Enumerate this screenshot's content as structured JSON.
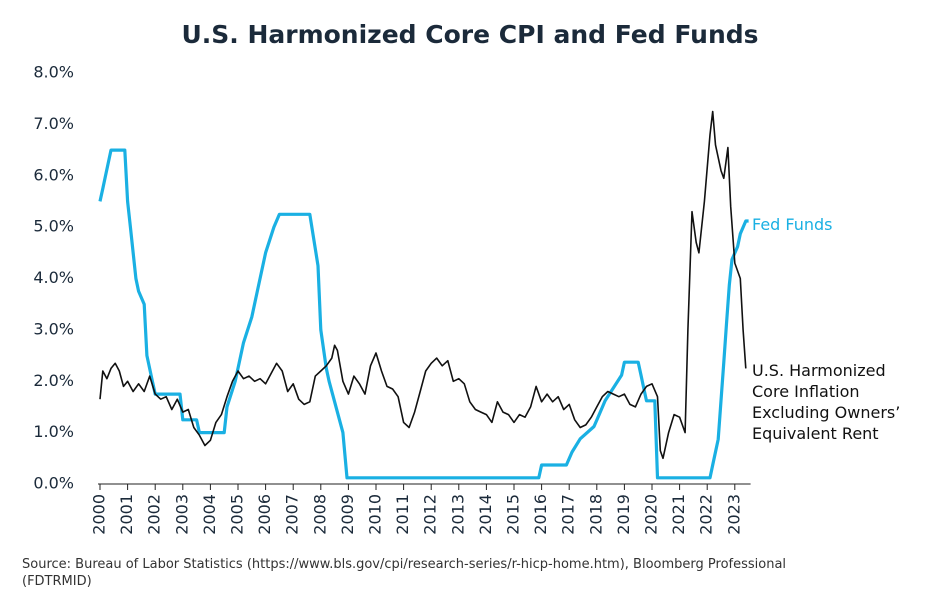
{
  "chart_data": {
    "type": "line",
    "title": "U.S. Harmonized Core CPI and Fed Funds",
    "source": "Source: Bureau of Labor Statistics (https://www.bls.gov/cpi/research-series/r-hicp-home.htm), Bloomberg Professional (FDTRMID)",
    "xlim": [
      2000,
      2023.5
    ],
    "xticks": [
      2000,
      2001,
      2002,
      2003,
      2004,
      2005,
      2006,
      2007,
      2008,
      2009,
      2010,
      2011,
      2012,
      2013,
      2014,
      2015,
      2016,
      2017,
      2018,
      2019,
      2020,
      2021,
      2022,
      2023
    ],
    "ylim": [
      0,
      8
    ],
    "yticks": [
      {
        "value": 0,
        "label": "0.0%"
      },
      {
        "value": 1,
        "label": "1.0%"
      },
      {
        "value": 2,
        "label": "2.0%"
      },
      {
        "value": 3,
        "label": "3.0%"
      },
      {
        "value": 4,
        "label": "4.0%"
      },
      {
        "value": 5,
        "label": "5.0%"
      },
      {
        "value": 6,
        "label": "6.0%"
      },
      {
        "value": 7,
        "label": "7.0%"
      },
      {
        "value": 8,
        "label": "8.0%"
      }
    ],
    "series": [
      {
        "name": "Fed Funds",
        "color": "#1ab0e3",
        "width": 3.2,
        "x": [
          2000.0,
          2000.1,
          2000.2,
          2000.4,
          2000.9,
          2001.0,
          2001.1,
          2001.3,
          2001.4,
          2001.6,
          2001.7,
          2001.9,
          2002.0,
          2002.9,
          2003.0,
          2003.5,
          2003.6,
          2004.5,
          2004.6,
          2004.9,
          2005.2,
          2005.5,
          2005.7,
          2006.0,
          2006.3,
          2006.5,
          2007.6,
          2007.75,
          2007.9,
          2008.0,
          2008.2,
          2008.3,
          2008.8,
          2008.95,
          2015.9,
          2016.0,
          2016.9,
          2017.1,
          2017.4,
          2017.9,
          2018.1,
          2018.3,
          2018.6,
          2018.9,
          2019.0,
          2019.5,
          2019.6,
          2019.7,
          2019.8,
          2020.1,
          2020.2,
          2022.1,
          2022.2,
          2022.4,
          2022.5,
          2022.6,
          2022.7,
          2022.8,
          2022.9,
          2023.1,
          2023.2,
          2023.4,
          2023.5
        ],
        "values": [
          5.5,
          5.75,
          6.0,
          6.5,
          6.5,
          5.5,
          5.0,
          4.0,
          3.75,
          3.5,
          2.5,
          2.0,
          1.75,
          1.75,
          1.25,
          1.25,
          1.0,
          1.0,
          1.5,
          2.0,
          2.75,
          3.25,
          3.75,
          4.5,
          5.0,
          5.25,
          5.25,
          4.75,
          4.25,
          3.0,
          2.25,
          2.0,
          1.0,
          0.12,
          0.12,
          0.37,
          0.37,
          0.62,
          0.88,
          1.12,
          1.37,
          1.62,
          1.87,
          2.12,
          2.37,
          2.37,
          2.12,
          1.87,
          1.62,
          1.62,
          0.12,
          0.12,
          0.37,
          0.87,
          1.62,
          2.37,
          3.12,
          3.87,
          4.37,
          4.62,
          4.87,
          5.12,
          5.12
        ]
      },
      {
        "name": "U.S. Harmonized Core Inflation Excluding Owners’ Equivalent Rent",
        "color": "#111111",
        "width": 1.6,
        "x": [
          2000.0,
          2000.1,
          2000.25,
          2000.4,
          2000.55,
          2000.7,
          2000.85,
          2001.0,
          2001.2,
          2001.4,
          2001.6,
          2001.8,
          2002.0,
          2002.2,
          2002.4,
          2002.6,
          2002.8,
          2003.0,
          2003.2,
          2003.4,
          2003.6,
          2003.8,
          2004.0,
          2004.2,
          2004.4,
          2004.6,
          2004.8,
          2005.0,
          2005.2,
          2005.4,
          2005.6,
          2005.8,
          2006.0,
          2006.2,
          2006.4,
          2006.6,
          2006.8,
          2007.0,
          2007.2,
          2007.4,
          2007.6,
          2007.8,
          2008.0,
          2008.2,
          2008.4,
          2008.5,
          2008.6,
          2008.8,
          2009.0,
          2009.2,
          2009.4,
          2009.6,
          2009.8,
          2010.0,
          2010.2,
          2010.4,
          2010.6,
          2010.8,
          2011.0,
          2011.2,
          2011.4,
          2011.6,
          2011.8,
          2012.0,
          2012.2,
          2012.4,
          2012.6,
          2012.8,
          2013.0,
          2013.2,
          2013.4,
          2013.6,
          2013.8,
          2014.0,
          2014.2,
          2014.4,
          2014.6,
          2014.8,
          2015.0,
          2015.2,
          2015.4,
          2015.6,
          2015.8,
          2016.0,
          2016.2,
          2016.4,
          2016.6,
          2016.8,
          2017.0,
          2017.2,
          2017.4,
          2017.6,
          2017.8,
          2018.0,
          2018.2,
          2018.4,
          2018.6,
          2018.8,
          2019.0,
          2019.2,
          2019.4,
          2019.6,
          2019.8,
          2020.0,
          2020.2,
          2020.3,
          2020.4,
          2020.6,
          2020.8,
          2021.0,
          2021.2,
          2021.3,
          2021.45,
          2021.6,
          2021.7,
          2021.9,
          2022.1,
          2022.2,
          2022.3,
          2022.5,
          2022.6,
          2022.75,
          2022.85,
          2023.0,
          2023.2,
          2023.3,
          2023.4
        ],
        "values": [
          1.65,
          2.2,
          2.05,
          2.25,
          2.35,
          2.2,
          1.9,
          2.0,
          1.8,
          1.95,
          1.8,
          2.1,
          1.75,
          1.65,
          1.7,
          1.45,
          1.65,
          1.4,
          1.45,
          1.1,
          0.95,
          0.75,
          0.85,
          1.2,
          1.35,
          1.7,
          2.0,
          2.2,
          2.05,
          2.1,
          2.0,
          2.05,
          1.95,
          2.15,
          2.35,
          2.2,
          1.8,
          1.95,
          1.65,
          1.55,
          1.6,
          2.1,
          2.2,
          2.3,
          2.45,
          2.7,
          2.6,
          2.0,
          1.75,
          2.1,
          1.95,
          1.75,
          2.3,
          2.55,
          2.2,
          1.9,
          1.85,
          1.7,
          1.2,
          1.1,
          1.4,
          1.8,
          2.2,
          2.35,
          2.45,
          2.3,
          2.4,
          2.0,
          2.05,
          1.95,
          1.6,
          1.45,
          1.4,
          1.35,
          1.2,
          1.6,
          1.4,
          1.35,
          1.2,
          1.35,
          1.3,
          1.5,
          1.9,
          1.6,
          1.75,
          1.6,
          1.7,
          1.45,
          1.55,
          1.25,
          1.1,
          1.15,
          1.3,
          1.5,
          1.7,
          1.8,
          1.75,
          1.7,
          1.75,
          1.55,
          1.5,
          1.75,
          1.9,
          1.95,
          1.7,
          0.65,
          0.5,
          1.0,
          1.35,
          1.3,
          1.0,
          3.0,
          5.3,
          4.7,
          4.5,
          5.5,
          6.8,
          7.25,
          6.6,
          6.1,
          5.95,
          6.55,
          5.4,
          4.3,
          4.0,
          3.0,
          2.25
        ]
      }
    ]
  }
}
